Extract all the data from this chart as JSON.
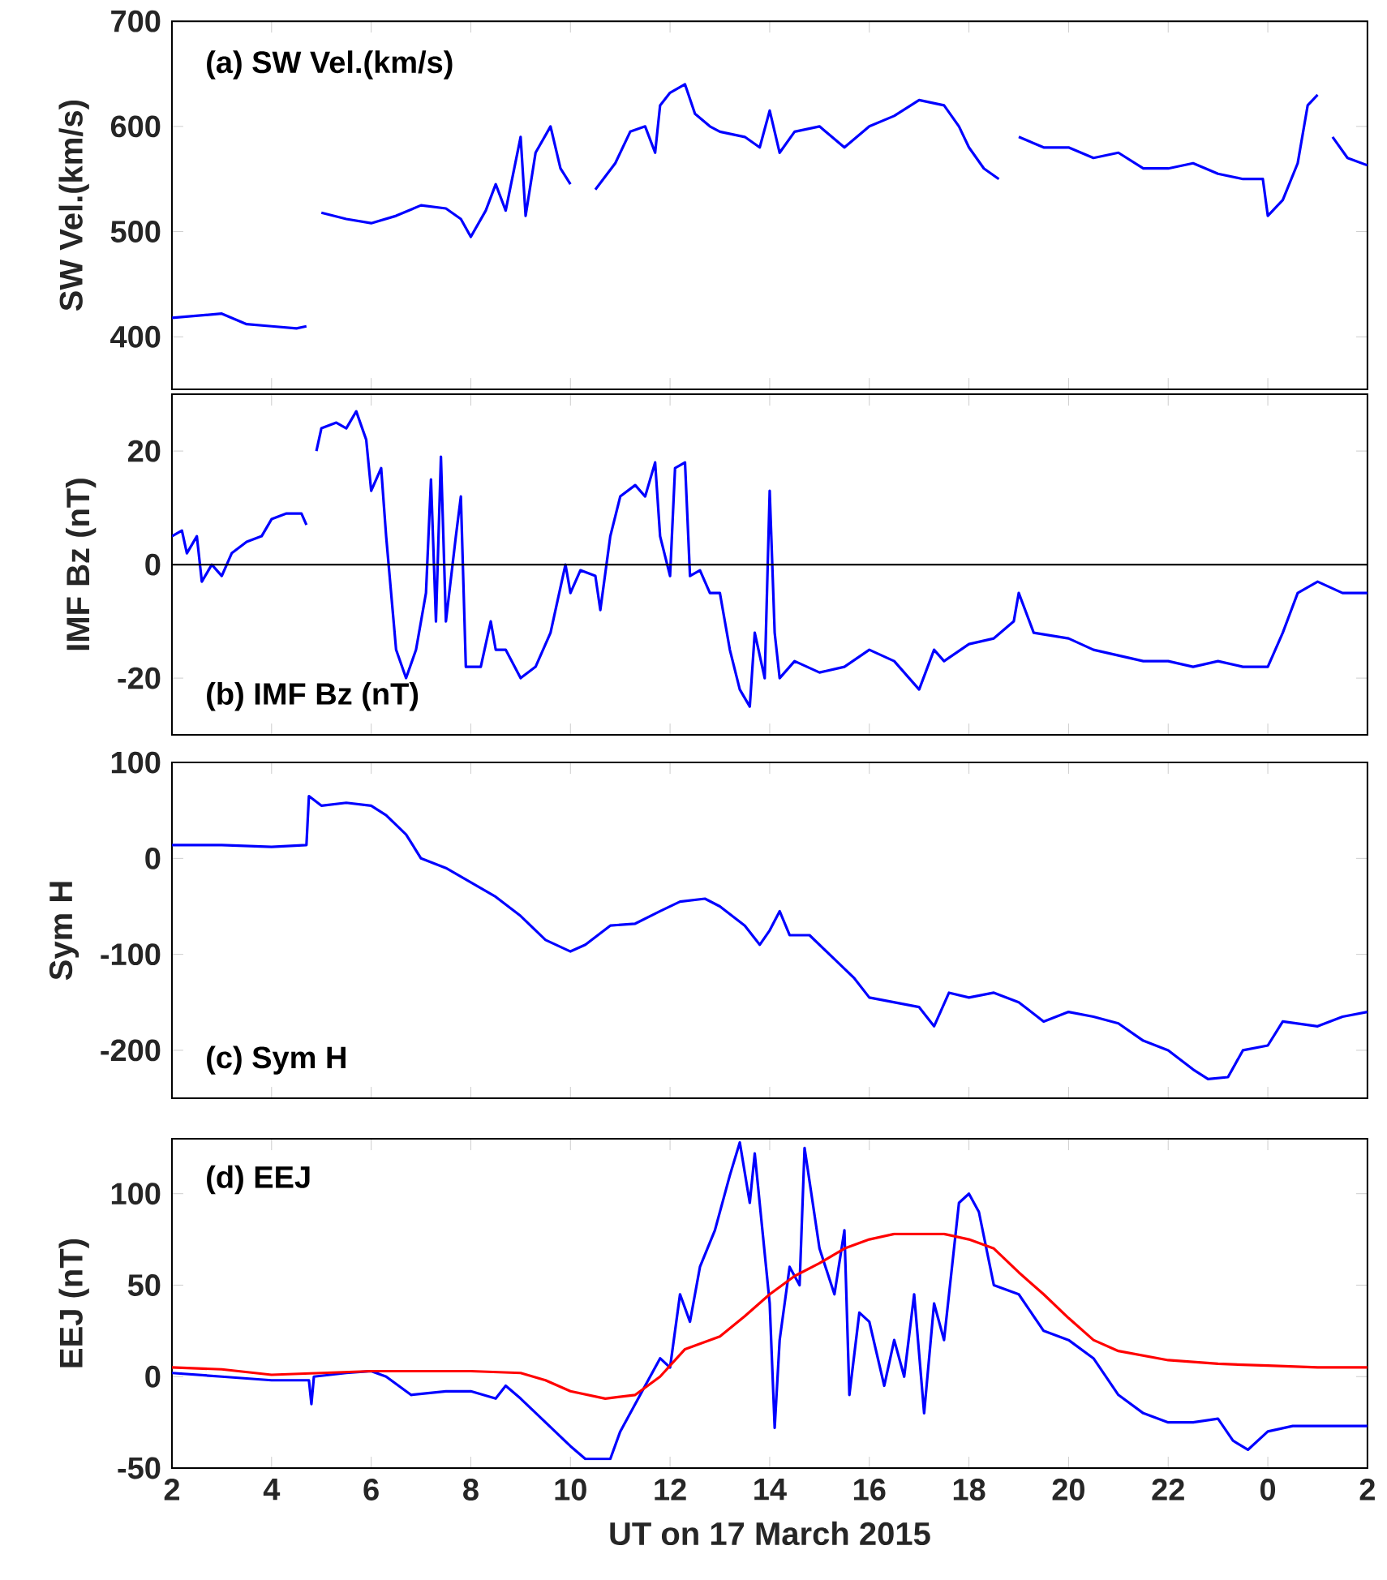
{
  "chart_data": [
    {
      "type": "line",
      "title": "(a) SW Vel.(km/s)",
      "ylabel": "SW Vel.(km/s)",
      "xlim": [
        "2015-03-17T02:00",
        "2015-03-18T02:00"
      ],
      "xticks": [
        {
          "value": "2015-03-17T02:00",
          "label": null
        },
        {
          "value": "2015-03-17T04:00",
          "label": null
        },
        {
          "value": "2015-03-17T06:00",
          "label": null
        },
        {
          "value": "2015-03-17T08:00",
          "label": null
        },
        {
          "value": "2015-03-17T10:00",
          "label": null
        },
        {
          "value": "2015-03-17T12:00",
          "label": null
        },
        {
          "value": "2015-03-17T14:00",
          "label": null
        },
        {
          "value": "2015-03-17T16:00",
          "label": null
        },
        {
          "value": "2015-03-17T18:00",
          "label": null
        },
        {
          "value": "2015-03-17T20:00",
          "label": null
        },
        {
          "value": "2015-03-17T22:00",
          "label": null
        },
        {
          "value": "2015-03-18T00:00",
          "label": null
        },
        {
          "value": "2015-03-18T02:00",
          "label": null
        }
      ],
      "ylim": [
        350,
        700
      ],
      "yticks": [
        400,
        500,
        600,
        700
      ],
      "tick_labels": "y",
      "x": [
        "2015-03-17T02:00",
        "2015-03-17T02:30",
        "2015-03-17T03:00",
        "2015-03-17T03:30",
        "2015-03-17T04:00",
        "2015-03-17T04:30",
        "2015-03-17T04:42",
        "2015-03-17T04:51",
        "2015-03-17T05:00",
        "2015-03-17T05:30",
        "2015-03-17T06:00",
        "2015-03-17T06:30",
        "2015-03-17T07:00",
        "2015-03-17T07:30",
        "2015-03-17T07:48",
        "2015-03-17T08:00",
        "2015-03-17T08:18",
        "2015-03-17T08:30",
        "2015-03-17T08:42",
        "2015-03-17T09:00",
        "2015-03-17T09:06",
        "2015-03-17T09:18",
        "2015-03-17T09:36",
        "2015-03-17T09:48",
        "2015-03-17T10:00",
        "2015-03-17T10:12",
        "2015-03-17T10:30",
        "2015-03-17T10:54",
        "2015-03-17T11:12",
        "2015-03-17T11:30",
        "2015-03-17T11:42",
        "2015-03-17T11:48",
        "2015-03-17T12:00",
        "2015-03-17T12:18",
        "2015-03-17T12:30",
        "2015-03-17T12:48",
        "2015-03-17T13:00",
        "2015-03-17T13:30",
        "2015-03-17T13:48",
        "2015-03-17T14:00",
        "2015-03-17T14:12",
        "2015-03-17T14:30",
        "2015-03-17T15:00",
        "2015-03-17T15:30",
        "2015-03-17T16:00",
        "2015-03-17T16:30",
        "2015-03-17T17:00",
        "2015-03-17T17:30",
        "2015-03-17T17:48",
        "2015-03-17T18:00",
        "2015-03-17T18:18",
        "2015-03-17T18:36",
        "2015-03-17T18:48",
        "2015-03-17T19:00",
        "2015-03-17T19:30",
        "2015-03-17T20:00",
        "2015-03-17T20:30",
        "2015-03-17T21:00",
        "2015-03-17T21:30",
        "2015-03-17T22:00",
        "2015-03-17T22:30",
        "2015-03-17T23:00",
        "2015-03-17T23:30",
        "2015-03-17T23:54",
        "2015-03-18T00:00",
        "2015-03-18T00:18",
        "2015-03-18T00:36",
        "2015-03-18T00:48",
        "2015-03-18T01:00",
        "2015-03-18T01:06",
        "2015-03-18T01:18",
        "2015-03-18T01:36",
        "2015-03-18T02:00"
      ],
      "series": [
        {
          "color": "#0000ff",
          "values": [
            418,
            420,
            422,
            412,
            410,
            408,
            410,
            null,
            518,
            512,
            508,
            515,
            525,
            522,
            512,
            495,
            520,
            545,
            520,
            590,
            515,
            575,
            600,
            560,
            545,
            null,
            540,
            565,
            595,
            600,
            575,
            620,
            632,
            640,
            612,
            600,
            595,
            590,
            580,
            615,
            575,
            595,
            600,
            580,
            600,
            610,
            625,
            620,
            600,
            580,
            560,
            550,
            null,
            590,
            580,
            580,
            570,
            575,
            560,
            560,
            565,
            555,
            550,
            550,
            515,
            530,
            565,
            620,
            630,
            null,
            590,
            570,
            563
          ]
        }
      ]
    },
    {
      "type": "line",
      "title": "(b) IMF Bz (nT)",
      "ylabel": "IMF Bz (nT)",
      "xlim": [
        "2015-03-17T02:00",
        "2015-03-18T02:00"
      ],
      "xticks": [
        {
          "value": "2015-03-17T02:00",
          "label": null
        },
        {
          "value": "2015-03-17T04:00",
          "label": null
        },
        {
          "value": "2015-03-17T06:00",
          "label": null
        },
        {
          "value": "2015-03-17T08:00",
          "label": null
        },
        {
          "value": "2015-03-17T10:00",
          "label": null
        },
        {
          "value": "2015-03-17T12:00",
          "label": null
        },
        {
          "value": "2015-03-17T14:00",
          "label": null
        },
        {
          "value": "2015-03-17T16:00",
          "label": null
        },
        {
          "value": "2015-03-17T18:00",
          "label": null
        },
        {
          "value": "2015-03-17T20:00",
          "label": null
        },
        {
          "value": "2015-03-17T22:00",
          "label": null
        },
        {
          "value": "2015-03-18T00:00",
          "label": null
        },
        {
          "value": "2015-03-18T02:00",
          "label": null
        }
      ],
      "ylim": [
        -30,
        30
      ],
      "yticks": [
        -20,
        0,
        20
      ],
      "tick_labels": "y",
      "ref_lines": [
        {
          "axis": "y",
          "value": 0,
          "color": "#000000"
        }
      ],
      "x": [
        "2015-03-17T02:00",
        "2015-03-17T02:12",
        "2015-03-17T02:18",
        "2015-03-17T02:30",
        "2015-03-17T02:36",
        "2015-03-17T02:48",
        "2015-03-17T03:00",
        "2015-03-17T03:12",
        "2015-03-17T03:30",
        "2015-03-17T03:48",
        "2015-03-17T04:00",
        "2015-03-17T04:18",
        "2015-03-17T04:36",
        "2015-03-17T04:42",
        "2015-03-17T04:48",
        "2015-03-17T04:54",
        "2015-03-17T05:00",
        "2015-03-17T05:18",
        "2015-03-17T05:30",
        "2015-03-17T05:42",
        "2015-03-17T05:54",
        "2015-03-17T06:00",
        "2015-03-17T06:12",
        "2015-03-17T06:18",
        "2015-03-17T06:30",
        "2015-03-17T06:42",
        "2015-03-17T06:54",
        "2015-03-17T07:06",
        "2015-03-17T07:12",
        "2015-03-17T07:18",
        "2015-03-17T07:24",
        "2015-03-17T07:30",
        "2015-03-17T07:42",
        "2015-03-17T07:48",
        "2015-03-17T07:54",
        "2015-03-17T08:12",
        "2015-03-17T08:24",
        "2015-03-17T08:30",
        "2015-03-17T08:42",
        "2015-03-17T09:00",
        "2015-03-17T09:18",
        "2015-03-17T09:36",
        "2015-03-17T09:54",
        "2015-03-17T10:00",
        "2015-03-17T10:12",
        "2015-03-17T10:30",
        "2015-03-17T10:36",
        "2015-03-17T10:48",
        "2015-03-17T11:00",
        "2015-03-17T11:18",
        "2015-03-17T11:30",
        "2015-03-17T11:42",
        "2015-03-17T11:48",
        "2015-03-17T12:00",
        "2015-03-17T12:06",
        "2015-03-17T12:18",
        "2015-03-17T12:24",
        "2015-03-17T12:36",
        "2015-03-17T12:48",
        "2015-03-17T13:00",
        "2015-03-17T13:12",
        "2015-03-17T13:24",
        "2015-03-17T13:36",
        "2015-03-17T13:42",
        "2015-03-17T13:54",
        "2015-03-17T14:00",
        "2015-03-17T14:06",
        "2015-03-17T14:12",
        "2015-03-17T14:30",
        "2015-03-17T15:00",
        "2015-03-17T15:30",
        "2015-03-17T16:00",
        "2015-03-17T16:30",
        "2015-03-17T17:00",
        "2015-03-17T17:18",
        "2015-03-17T17:30",
        "2015-03-17T18:00",
        "2015-03-17T18:30",
        "2015-03-17T18:54",
        "2015-03-17T19:00",
        "2015-03-17T19:18",
        "2015-03-17T20:00",
        "2015-03-17T20:30",
        "2015-03-17T21:00",
        "2015-03-17T21:30",
        "2015-03-17T22:00",
        "2015-03-17T22:30",
        "2015-03-17T23:00",
        "2015-03-17T23:30",
        "2015-03-18T00:00",
        "2015-03-18T00:18",
        "2015-03-18T00:36",
        "2015-03-18T01:00",
        "2015-03-18T01:30",
        "2015-03-18T02:00"
      ],
      "series": [
        {
          "color": "#0000ff",
          "values": [
            5,
            6,
            2,
            5,
            -3,
            0,
            -2,
            2,
            4,
            5,
            8,
            9,
            9,
            7,
            null,
            20,
            24,
            25,
            24,
            27,
            22,
            13,
            17,
            5,
            -15,
            -20,
            -15,
            -5,
            15,
            -10,
            19,
            -10,
            5,
            12,
            -18,
            -18,
            -10,
            -15,
            -15,
            -20,
            -18,
            -12,
            0,
            -5,
            -1,
            -2,
            -8,
            5,
            12,
            14,
            12,
            18,
            5,
            -2,
            17,
            18,
            -2,
            -1,
            -5,
            -5,
            -15,
            -22,
            -25,
            -12,
            -20,
            13,
            -12,
            -20,
            -17,
            -19,
            -18,
            -15,
            -17,
            -22,
            -15,
            -17,
            -14,
            -13,
            -10,
            -5,
            -12,
            -13,
            -15,
            -16,
            -17,
            -17,
            -18,
            -17,
            -18,
            -18,
            -12,
            -5,
            -3,
            -5,
            -5
          ]
        }
      ]
    },
    {
      "type": "line",
      "title": "(c) Sym H",
      "ylabel": "Sym H",
      "xlim": [
        "2015-03-17T02:00",
        "2015-03-18T02:00"
      ],
      "xticks": [
        {
          "value": "2015-03-17T02:00",
          "label": null
        },
        {
          "value": "2015-03-17T04:00",
          "label": null
        },
        {
          "value": "2015-03-17T06:00",
          "label": null
        },
        {
          "value": "2015-03-17T08:00",
          "label": null
        },
        {
          "value": "2015-03-17T10:00",
          "label": null
        },
        {
          "value": "2015-03-17T12:00",
          "label": null
        },
        {
          "value": "2015-03-17T14:00",
          "label": null
        },
        {
          "value": "2015-03-17T16:00",
          "label": null
        },
        {
          "value": "2015-03-17T18:00",
          "label": null
        },
        {
          "value": "2015-03-17T20:00",
          "label": null
        },
        {
          "value": "2015-03-17T22:00",
          "label": null
        },
        {
          "value": "2015-03-18T00:00",
          "label": null
        },
        {
          "value": "2015-03-18T02:00",
          "label": null
        }
      ],
      "ylim": [
        -250,
        100
      ],
      "yticks": [
        -200,
        -100,
        0,
        100
      ],
      "tick_labels": "y",
      "x": [
        "2015-03-17T02:00",
        "2015-03-17T03:00",
        "2015-03-17T04:00",
        "2015-03-17T04:42",
        "2015-03-17T04:45",
        "2015-03-17T05:00",
        "2015-03-17T05:30",
        "2015-03-17T06:00",
        "2015-03-17T06:18",
        "2015-03-17T06:42",
        "2015-03-17T07:00",
        "2015-03-17T07:30",
        "2015-03-17T08:00",
        "2015-03-17T08:30",
        "2015-03-17T09:00",
        "2015-03-17T09:30",
        "2015-03-17T10:00",
        "2015-03-17T10:18",
        "2015-03-17T10:48",
        "2015-03-17T11:18",
        "2015-03-17T11:48",
        "2015-03-17T12:12",
        "2015-03-17T12:42",
        "2015-03-17T13:00",
        "2015-03-17T13:30",
        "2015-03-17T13:48",
        "2015-03-17T14:00",
        "2015-03-17T14:12",
        "2015-03-17T14:24",
        "2015-03-17T14:48",
        "2015-03-17T15:12",
        "2015-03-17T15:42",
        "2015-03-17T16:00",
        "2015-03-17T16:30",
        "2015-03-17T17:00",
        "2015-03-17T17:18",
        "2015-03-17T17:36",
        "2015-03-17T18:00",
        "2015-03-17T18:30",
        "2015-03-17T19:00",
        "2015-03-17T19:30",
        "2015-03-17T20:00",
        "2015-03-17T20:30",
        "2015-03-17T21:00",
        "2015-03-17T21:30",
        "2015-03-17T22:00",
        "2015-03-17T22:30",
        "2015-03-17T22:48",
        "2015-03-17T23:12",
        "2015-03-17T23:30",
        "2015-03-18T00:00",
        "2015-03-18T00:18",
        "2015-03-18T01:00",
        "2015-03-18T01:30",
        "2015-03-18T02:00"
      ],
      "series": [
        {
          "color": "#0000ff",
          "values": [
            14,
            14,
            12,
            14,
            65,
            55,
            58,
            55,
            45,
            25,
            0,
            -10,
            -25,
            -40,
            -60,
            -85,
            -97,
            -90,
            -70,
            -68,
            -55,
            -45,
            -42,
            -50,
            -70,
            -90,
            -75,
            -55,
            -80,
            -80,
            -100,
            -125,
            -145,
            -150,
            -155,
            -175,
            -140,
            -145,
            -140,
            -150,
            -170,
            -160,
            -165,
            -172,
            -190,
            -200,
            -220,
            -230,
            -228,
            -200,
            -195,
            -170,
            -175,
            -165,
            -160
          ]
        }
      ]
    },
    {
      "type": "line",
      "title": "(d) EEJ",
      "ylabel": "EEJ (nT)",
      "xlabel": "UT on 17 March 2015",
      "xlim": [
        "2015-03-17T02:00",
        "2015-03-18T02:00"
      ],
      "xticks": [
        {
          "value": "2015-03-17T02:00",
          "label": "2"
        },
        {
          "value": "2015-03-17T04:00",
          "label": "4"
        },
        {
          "value": "2015-03-17T06:00",
          "label": "6"
        },
        {
          "value": "2015-03-17T08:00",
          "label": "8"
        },
        {
          "value": "2015-03-17T10:00",
          "label": "10"
        },
        {
          "value": "2015-03-17T12:00",
          "label": "12"
        },
        {
          "value": "2015-03-17T14:00",
          "label": "14"
        },
        {
          "value": "2015-03-17T16:00",
          "label": "16"
        },
        {
          "value": "2015-03-17T18:00",
          "label": "18"
        },
        {
          "value": "2015-03-17T20:00",
          "label": "20"
        },
        {
          "value": "2015-03-17T22:00",
          "label": "22"
        },
        {
          "value": "2015-03-18T00:00",
          "label": "0"
        },
        {
          "value": "2015-03-18T02:00",
          "label": "2"
        }
      ],
      "ylim": [
        -50,
        130
      ],
      "yticks": [
        -50,
        0,
        50,
        100
      ],
      "series": [
        {
          "color": "#0000ff",
          "x": [
            "2015-03-17T02:00",
            "2015-03-17T03:00",
            "2015-03-17T04:00",
            "2015-03-17T04:45",
            "2015-03-17T04:48",
            "2015-03-17T04:51",
            "2015-03-17T05:30",
            "2015-03-17T06:00",
            "2015-03-17T06:18",
            "2015-03-17T06:48",
            "2015-03-17T07:30",
            "2015-03-17T08:00",
            "2015-03-17T08:30",
            "2015-03-17T08:42",
            "2015-03-17T09:00",
            "2015-03-17T09:30",
            "2015-03-17T10:00",
            "2015-03-17T10:18",
            "2015-03-17T10:48",
            "2015-03-17T11:00",
            "2015-03-17T11:30",
            "2015-03-17T11:48",
            "2015-03-17T12:00",
            "2015-03-17T12:12",
            "2015-03-17T12:24",
            "2015-03-17T12:36",
            "2015-03-17T12:54",
            "2015-03-17T13:12",
            "2015-03-17T13:24",
            "2015-03-17T13:36",
            "2015-03-17T13:42",
            "2015-03-17T14:00",
            "2015-03-17T14:06",
            "2015-03-17T14:12",
            "2015-03-17T14:24",
            "2015-03-17T14:36",
            "2015-03-17T14:42",
            "2015-03-17T15:00",
            "2015-03-17T15:18",
            "2015-03-17T15:30",
            "2015-03-17T15:36",
            "2015-03-17T15:48",
            "2015-03-17T16:00",
            "2015-03-17T16:18",
            "2015-03-17T16:30",
            "2015-03-17T16:42",
            "2015-03-17T16:54",
            "2015-03-17T17:06",
            "2015-03-17T17:18",
            "2015-03-17T17:30",
            "2015-03-17T17:48",
            "2015-03-17T18:00",
            "2015-03-17T18:12",
            "2015-03-17T18:30",
            "2015-03-17T19:00",
            "2015-03-17T19:30",
            "2015-03-17T20:00",
            "2015-03-17T20:30",
            "2015-03-17T21:00",
            "2015-03-17T21:30",
            "2015-03-17T22:00",
            "2015-03-17T22:30",
            "2015-03-17T23:00",
            "2015-03-17T23:18",
            "2015-03-17T23:36",
            "2015-03-18T00:00",
            "2015-03-18T00:30",
            "2015-03-18T01:00",
            "2015-03-18T02:00"
          ],
          "values": [
            2,
            0,
            -2,
            -2,
            -15,
            0,
            2,
            3,
            0,
            -10,
            -8,
            -8,
            -12,
            -5,
            -12,
            -25,
            -38,
            -45,
            -45,
            -30,
            -5,
            10,
            5,
            45,
            30,
            60,
            80,
            110,
            128,
            95,
            122,
            40,
            -28,
            20,
            60,
            50,
            125,
            70,
            45,
            80,
            -10,
            35,
            30,
            -5,
            20,
            0,
            45,
            -20,
            40,
            20,
            95,
            100,
            90,
            50,
            45,
            25,
            20,
            10,
            -10,
            -20,
            -25,
            -25,
            -23,
            -35,
            -40,
            -30,
            -27,
            -27,
            -27
          ]
        },
        {
          "color": "#ff0000",
          "x": [
            "2015-03-17T02:00",
            "2015-03-17T03:00",
            "2015-03-17T04:00",
            "2015-03-17T05:00",
            "2015-03-17T06:00",
            "2015-03-17T07:00",
            "2015-03-17T08:00",
            "2015-03-17T09:00",
            "2015-03-17T09:30",
            "2015-03-17T10:00",
            "2015-03-17T10:42",
            "2015-03-17T11:18",
            "2015-03-17T11:48",
            "2015-03-17T12:18",
            "2015-03-17T13:00",
            "2015-03-17T13:30",
            "2015-03-17T14:00",
            "2015-03-17T14:30",
            "2015-03-17T15:00",
            "2015-03-17T15:30",
            "2015-03-17T16:00",
            "2015-03-17T16:30",
            "2015-03-17T17:00",
            "2015-03-17T17:30",
            "2015-03-17T18:00",
            "2015-03-17T18:30",
            "2015-03-17T19:00",
            "2015-03-17T19:30",
            "2015-03-17T20:00",
            "2015-03-17T20:30",
            "2015-03-17T21:00",
            "2015-03-17T22:00",
            "2015-03-17T23:00",
            "2015-03-18T00:00",
            "2015-03-18T01:00",
            "2015-03-18T02:00"
          ],
          "values": [
            5,
            4,
            1,
            2,
            3,
            3,
            3,
            2,
            -2,
            -8,
            -12,
            -10,
            0,
            15,
            22,
            33,
            45,
            55,
            62,
            70,
            75,
            78,
            78,
            78,
            75,
            70,
            57,
            45,
            32,
            20,
            14,
            9,
            7,
            6,
            5,
            5
          ]
        }
      ]
    }
  ]
}
